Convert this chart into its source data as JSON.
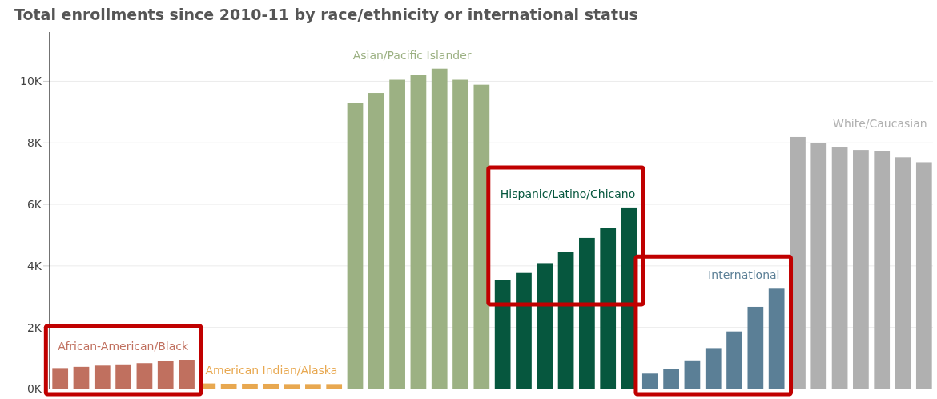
{
  "chart_data": {
    "type": "bar",
    "title": "Total enrollments since 2010-11 by race/ethnicity or international status",
    "categories": [
      null,
      null,
      null,
      null,
      null,
      null,
      null,
      null,
      null,
      null,
      null,
      null,
      null,
      null,
      null,
      null,
      null,
      null,
      null,
      null,
      null,
      null,
      null,
      null,
      null,
      null,
      null,
      null,
      null,
      null,
      null,
      null,
      null,
      null,
      null,
      null,
      null,
      null,
      null,
      null,
      null,
      null
    ],
    "series": [
      {
        "name": "African-American/Black",
        "color": "#c0705f",
        "values": [
          680,
          720,
          760,
          800,
          840,
          910,
          950,
          null,
          null,
          null,
          null,
          null,
          null,
          null,
          null,
          null,
          null,
          null,
          null,
          null,
          null,
          null,
          null,
          null,
          null,
          null,
          null,
          null,
          null,
          null,
          null,
          null,
          null,
          null,
          null,
          null,
          null,
          null,
          null,
          null,
          null,
          null
        ]
      },
      {
        "name": "American Indian/Alaska",
        "color": "#e8a850",
        "values": [
          null,
          null,
          null,
          null,
          null,
          null,
          null,
          180,
          170,
          170,
          170,
          160,
          160,
          160,
          null,
          null,
          null,
          null,
          null,
          null,
          null,
          null,
          null,
          null,
          null,
          null,
          null,
          null,
          null,
          null,
          null,
          null,
          null,
          null,
          null,
          null,
          null,
          null,
          null,
          null,
          null,
          null
        ]
      },
      {
        "name": "Asian/Pacific Islander",
        "color": "#9cb183",
        "values": [
          null,
          null,
          null,
          null,
          null,
          null,
          null,
          null,
          null,
          null,
          null,
          null,
          null,
          null,
          9300,
          9620,
          10050,
          10210,
          10410,
          10050,
          9890,
          null,
          null,
          null,
          null,
          null,
          null,
          null,
          null,
          null,
          null,
          null,
          null,
          null,
          null,
          null,
          null,
          null,
          null,
          null,
          null,
          null
        ]
      },
      {
        "name": "Hispanic/Latino/Chicano",
        "color": "#06573e",
        "values": [
          null,
          null,
          null,
          null,
          null,
          null,
          null,
          null,
          null,
          null,
          null,
          null,
          null,
          null,
          null,
          null,
          null,
          null,
          null,
          null,
          null,
          3530,
          3770,
          4090,
          4450,
          4910,
          5230,
          5900,
          null,
          null,
          null,
          null,
          null,
          null,
          null,
          null,
          null,
          null,
          null,
          null,
          null,
          null
        ]
      },
      {
        "name": "International",
        "color": "#5b7f96",
        "values": [
          null,
          null,
          null,
          null,
          null,
          null,
          null,
          null,
          null,
          null,
          null,
          null,
          null,
          null,
          null,
          null,
          null,
          null,
          null,
          null,
          null,
          null,
          null,
          null,
          null,
          null,
          null,
          null,
          500,
          650,
          930,
          1330,
          1870,
          2670,
          3260,
          null,
          null,
          null,
          null,
          null,
          null,
          null
        ]
      },
      {
        "name": "White/Caucasian",
        "color": "#b0b0b0",
        "values": [
          null,
          null,
          null,
          null,
          null,
          null,
          null,
          null,
          null,
          null,
          null,
          null,
          null,
          null,
          null,
          null,
          null,
          null,
          null,
          null,
          null,
          null,
          null,
          null,
          null,
          null,
          null,
          null,
          null,
          null,
          null,
          null,
          null,
          null,
          null,
          8190,
          8000,
          7850,
          7770,
          7720,
          7530,
          7370
        ]
      }
    ],
    "ylim": [
      0,
      11600
    ],
    "yticks": [
      {
        "value": 0,
        "label": "0K"
      },
      {
        "value": 2000,
        "label": "2K"
      },
      {
        "value": 4000,
        "label": "4K"
      },
      {
        "value": 6000,
        "label": "6K"
      },
      {
        "value": 8000,
        "label": "8K"
      },
      {
        "value": 10000,
        "label": "10K"
      }
    ],
    "grid": "y"
  }
}
